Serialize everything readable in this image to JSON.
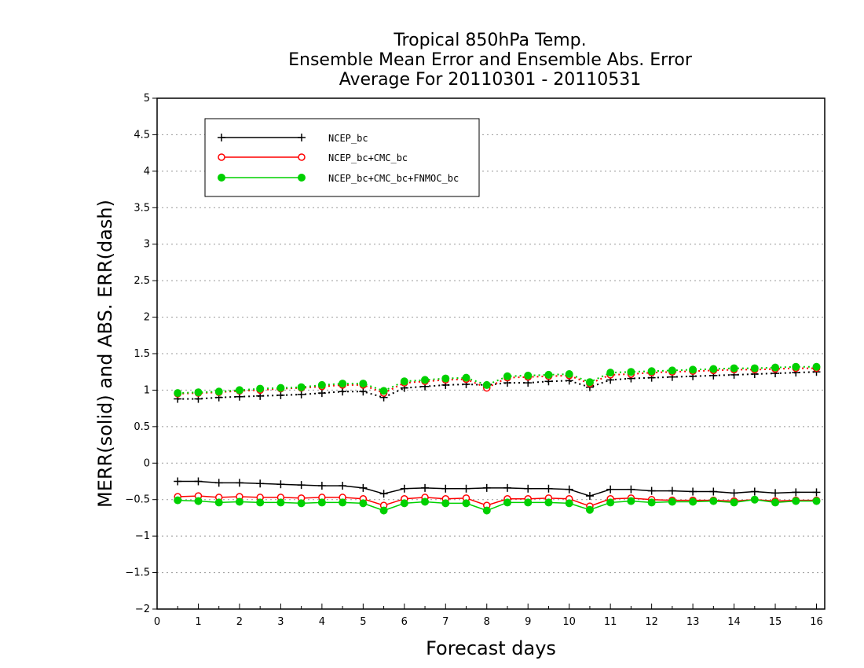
{
  "chart_data": {
    "type": "line",
    "title_lines": [
      "Tropical 850hPa Temp.",
      "Ensemble Mean Error and Ensemble Abs. Error",
      "Average For 20110301 - 20110531"
    ],
    "xlabel": "Forecast days",
    "ylabel": "MERR(solid) and ABS. ERR(dash)",
    "xlim": [
      0,
      16.2
    ],
    "ylim": [
      -2,
      5
    ],
    "x_ticks": [
      0,
      1,
      2,
      3,
      4,
      5,
      6,
      7,
      8,
      9,
      10,
      11,
      12,
      13,
      14,
      15,
      16
    ],
    "y_ticks": [
      -2,
      -1.5,
      -1,
      -0.5,
      0,
      0.5,
      1,
      1.5,
      2,
      2.5,
      3,
      3.5,
      4,
      4.5,
      5
    ],
    "grid": "horizontal dotted",
    "legend_position": "top-left",
    "x": [
      0.5,
      1,
      1.5,
      2,
      2.5,
      3,
      3.5,
      4,
      4.5,
      5,
      5.5,
      6,
      6.5,
      7,
      7.5,
      8,
      8.5,
      9,
      9.5,
      10,
      10.5,
      11,
      11.5,
      12,
      12.5,
      13,
      13.5,
      14,
      14.5,
      15,
      15.5,
      16
    ],
    "series": [
      {
        "name": "NCEP_bc",
        "color": "#000000",
        "marker": "plus",
        "merr": [
          -0.25,
          -0.25,
          -0.27,
          -0.27,
          -0.28,
          -0.29,
          -0.3,
          -0.31,
          -0.31,
          -0.34,
          -0.42,
          -0.35,
          -0.34,
          -0.35,
          -0.35,
          -0.34,
          -0.34,
          -0.35,
          -0.35,
          -0.36,
          -0.45,
          -0.36,
          -0.36,
          -0.38,
          -0.38,
          -0.39,
          -0.39,
          -0.41,
          -0.39,
          -0.41,
          -0.4,
          -0.4
        ],
        "abs_err": [
          0.88,
          0.88,
          0.9,
          0.91,
          0.92,
          0.93,
          0.94,
          0.96,
          0.98,
          0.98,
          0.9,
          1.03,
          1.05,
          1.07,
          1.08,
          1.07,
          1.1,
          1.1,
          1.12,
          1.13,
          1.04,
          1.14,
          1.16,
          1.17,
          1.18,
          1.19,
          1.2,
          1.21,
          1.22,
          1.23,
          1.24,
          1.25
        ]
      },
      {
        "name": "NCEP_bc+CMC_bc",
        "color": "#ff0000",
        "marker": "open-circle",
        "merr": [
          -0.46,
          -0.45,
          -0.47,
          -0.46,
          -0.47,
          -0.47,
          -0.48,
          -0.47,
          -0.47,
          -0.49,
          -0.58,
          -0.49,
          -0.47,
          -0.49,
          -0.48,
          -0.58,
          -0.49,
          -0.49,
          -0.48,
          -0.49,
          -0.59,
          -0.49,
          -0.48,
          -0.5,
          -0.51,
          -0.51,
          -0.51,
          -0.52,
          -0.5,
          -0.52,
          -0.51,
          -0.51
        ],
        "abs_err": [
          0.95,
          0.96,
          0.97,
          0.99,
          1.0,
          1.02,
          1.03,
          1.05,
          1.07,
          1.07,
          0.96,
          1.1,
          1.12,
          1.14,
          1.15,
          1.03,
          1.17,
          1.18,
          1.19,
          1.2,
          1.09,
          1.21,
          1.22,
          1.24,
          1.25,
          1.26,
          1.27,
          1.28,
          1.28,
          1.29,
          1.3,
          1.3
        ]
      },
      {
        "name": "NCEP_bc+CMC_bc+FNMOC_bc",
        "color": "#00d000",
        "marker": "filled-circle",
        "merr": [
          -0.51,
          -0.52,
          -0.54,
          -0.53,
          -0.54,
          -0.54,
          -0.55,
          -0.54,
          -0.54,
          -0.55,
          -0.65,
          -0.55,
          -0.53,
          -0.55,
          -0.55,
          -0.65,
          -0.54,
          -0.54,
          -0.54,
          -0.55,
          -0.64,
          -0.54,
          -0.52,
          -0.54,
          -0.53,
          -0.53,
          -0.52,
          -0.54,
          -0.5,
          -0.54,
          -0.52,
          -0.52
        ],
        "abs_err": [
          0.96,
          0.97,
          0.98,
          1.0,
          1.02,
          1.03,
          1.04,
          1.07,
          1.09,
          1.09,
          0.99,
          1.12,
          1.14,
          1.16,
          1.17,
          1.07,
          1.19,
          1.2,
          1.21,
          1.22,
          1.11,
          1.24,
          1.25,
          1.26,
          1.27,
          1.28,
          1.29,
          1.3,
          1.3,
          1.31,
          1.32,
          1.32
        ]
      }
    ]
  }
}
